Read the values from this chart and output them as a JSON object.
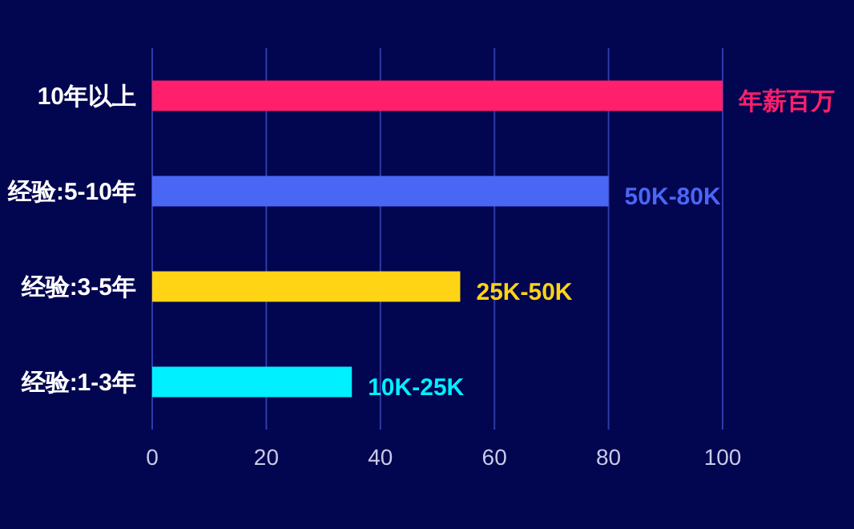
{
  "chart_data": {
    "type": "bar",
    "orientation": "horizontal",
    "categories": [
      "10年以上",
      "经验:5-10年",
      "经验:3-5年",
      "经验:1-3年"
    ],
    "values": [
      100,
      80,
      54,
      35
    ],
    "colors": [
      "#ff1f6b",
      "#4a66f5",
      "#ffd414",
      "#00f0ff"
    ],
    "annotations": [
      {
        "text": "年薪百万",
        "x": 100,
        "y": "10年以上"
      },
      {
        "text": "50K-80K",
        "x": 80,
        "y": "经验:5-10年"
      },
      {
        "text": "25K-50K",
        "x": 54,
        "y": "经验:3-5年"
      },
      {
        "text": "10K-25K",
        "x": 35,
        "y": "经验:1-3年"
      }
    ],
    "xlim": [
      0,
      100
    ],
    "xticks": [
      0,
      20,
      40,
      60,
      80,
      100
    ],
    "grid": "x"
  }
}
